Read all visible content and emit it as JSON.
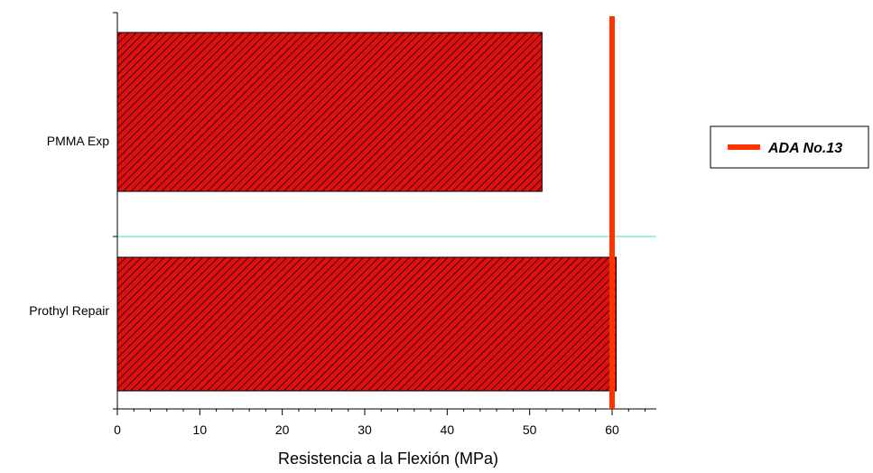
{
  "chart_data": {
    "type": "bar",
    "orientation": "horizontal",
    "categories": [
      "PMMA Exp",
      "Prothyl Repair"
    ],
    "values": [
      51.5,
      60.5
    ],
    "bar_color": "#dd1111",
    "bar_pattern": "diagonal-hatch",
    "xlabel": "Resistencia a la Flexión (MPa)",
    "xlim": [
      0,
      65
    ],
    "xticks": [
      0,
      10,
      20,
      30,
      40,
      50,
      60
    ],
    "reference_line": {
      "name": "ADA No.13",
      "value": 60,
      "color": "#ff3300"
    },
    "separator_color": "#40e0d0",
    "legend": {
      "entries": [
        "ADA No.13"
      ],
      "placement": "right"
    }
  }
}
